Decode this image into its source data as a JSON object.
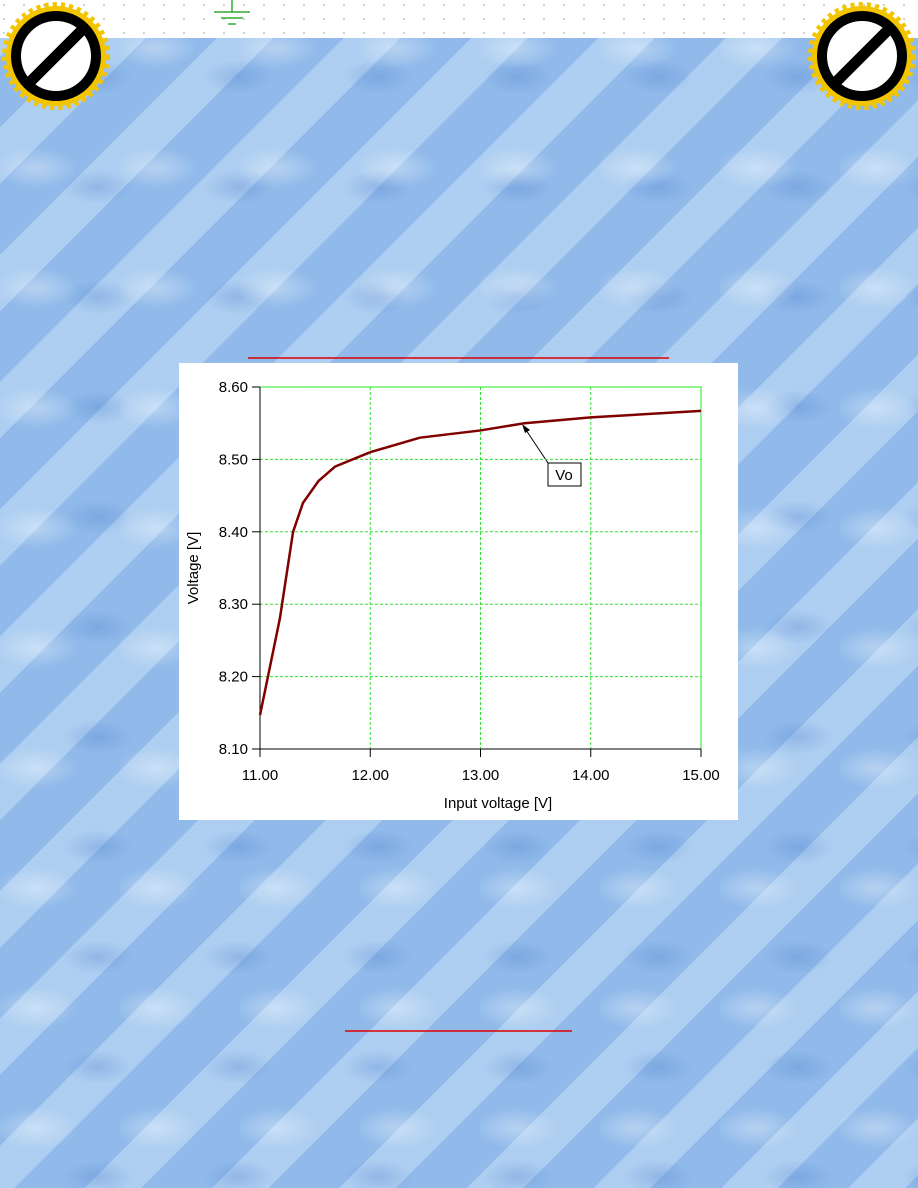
{
  "chart_data": {
    "type": "line",
    "xlabel": "Input voltage [V]",
    "ylabel": "Voltage [V]",
    "annotation": "Vo",
    "x": [
      11.0,
      11.045,
      11.18,
      11.3,
      11.39,
      11.53,
      11.68,
      12.0,
      12.45,
      13.0,
      13.4,
      14.0,
      15.0
    ],
    "values": [
      8.147,
      8.18,
      8.28,
      8.4,
      8.44,
      8.47,
      8.49,
      8.51,
      8.53,
      8.54,
      8.55,
      8.558,
      8.567
    ],
    "color": "#800000",
    "xlim": [
      11.0,
      15.0
    ],
    "ylim": [
      8.1,
      8.6
    ],
    "xticks": [
      {
        "value": 11,
        "label": "11.00"
      },
      {
        "value": 12,
        "label": "12.00"
      },
      {
        "value": 13,
        "label": "13.00"
      },
      {
        "value": 14,
        "label": "14.00"
      },
      {
        "value": 15,
        "label": "15.00"
      }
    ],
    "yticks": [
      {
        "value": 8.1,
        "label": "8.10"
      },
      {
        "value": 8.2,
        "label": "8.20"
      },
      {
        "value": 8.3,
        "label": "8.30"
      },
      {
        "value": 8.4,
        "label": "8.40"
      },
      {
        "value": 8.5,
        "label": "8.50"
      },
      {
        "value": 8.6,
        "label": "8.60"
      }
    ],
    "grid": true
  }
}
